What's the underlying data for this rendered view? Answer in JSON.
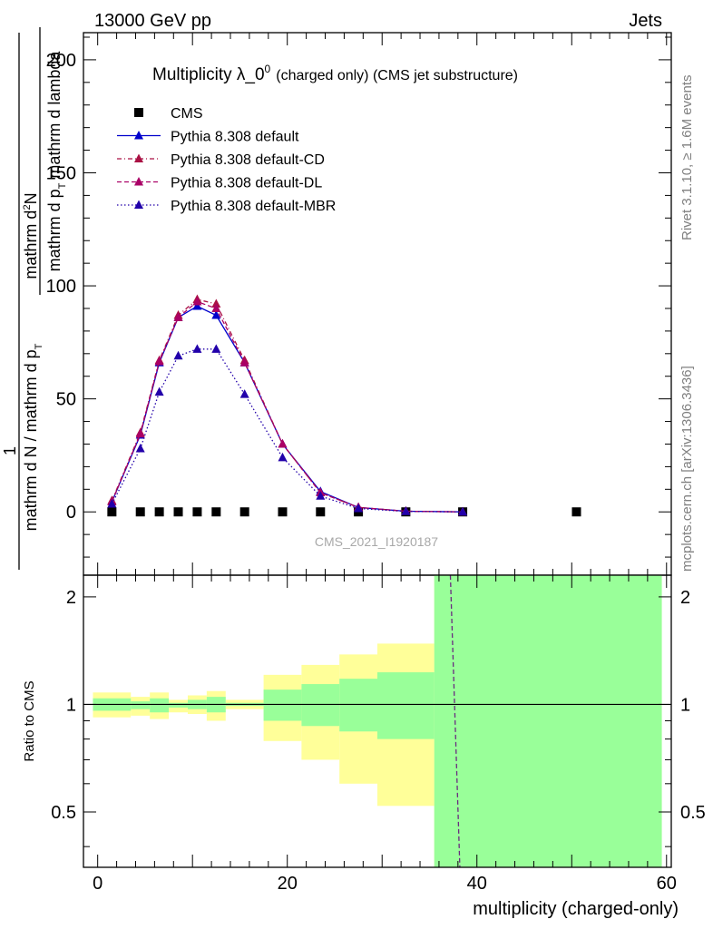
{
  "header": {
    "left": "13000 GeV pp",
    "right": "Jets"
  },
  "side": {
    "rivet": "Rivet 3.1.10, ≥ 1.6M events",
    "mcplots": "mcplots.cern.ch [arXiv:1306.3436]"
  },
  "chart_data": [
    {
      "type": "line",
      "title": "Multiplicity λ_0",
      "title_sup": "0",
      "subtitle": "(charged only) (CMS jet substructure)",
      "ylabel_num": "mathrm d",
      "ylabel_num_sup": "2",
      "ylabel_num_tail": "N",
      "ylabel_den": "mathrm d p",
      "ylabel_den_sub": "T",
      "ylabel_den_tail": " mathrm d lambda",
      "ylabel_pre_num": "1",
      "ylabel_pre_den": "mathrm d N / mathrm d p",
      "ylabel_pre_den_sub": "T",
      "xlim": [
        -1.5,
        60.5
      ],
      "ylim": [
        -28,
        212
      ],
      "yticks": [
        0,
        50,
        100,
        150,
        200
      ],
      "watermark": "CMS_2021_I1920187",
      "legend_position": "top-left",
      "series": [
        {
          "name": "CMS",
          "style": "markers-square",
          "color": "#000000",
          "x": [
            1.5,
            4.5,
            6.5,
            8.5,
            10.5,
            12.5,
            15.5,
            19.5,
            23.5,
            27.5,
            32.5,
            38.5,
            50.5
          ],
          "y": [
            0,
            0,
            0,
            0,
            0,
            0,
            0,
            0,
            0,
            0,
            0,
            0,
            0
          ]
        },
        {
          "name": "Pythia 8.308 default",
          "style": "solid",
          "color": "#0000cc",
          "x": [
            1.5,
            4.5,
            6.5,
            8.5,
            10.5,
            12.5,
            15.5,
            19.5,
            23.5,
            27.5,
            32.5,
            38.5
          ],
          "y": [
            4.5,
            34,
            66,
            86,
            91,
            87,
            66,
            30,
            9,
            2,
            0.3,
            0
          ]
        },
        {
          "name": "Pythia 8.308 default-CD",
          "style": "dashdot",
          "color": "#aa1144",
          "x": [
            1.5,
            4.5,
            6.5,
            8.5,
            10.5,
            12.5,
            15.5,
            19.5,
            23.5,
            27.5,
            32.5,
            38.5
          ],
          "y": [
            5,
            35,
            67,
            87,
            94,
            92,
            67,
            30,
            8.5,
            2,
            0.3,
            0
          ]
        },
        {
          "name": "Pythia 8.308 default-DL",
          "style": "dashed",
          "color": "#aa0066",
          "x": [
            1.5,
            4.5,
            6.5,
            8.5,
            10.5,
            12.5,
            15.5,
            19.5,
            23.5,
            27.5,
            32.5,
            38.5
          ],
          "y": [
            4.5,
            34.5,
            66.5,
            86,
            93,
            90,
            66,
            30,
            8.5,
            2,
            0.3,
            0
          ]
        },
        {
          "name": "Pythia 8.308 default-MBR",
          "style": "dotted",
          "color": "#2200aa",
          "x": [
            1.5,
            4.5,
            6.5,
            8.5,
            10.5,
            12.5,
            15.5,
            19.5,
            23.5,
            27.5,
            32.5,
            38.5
          ],
          "y": [
            3.5,
            28,
            53,
            69,
            72,
            72,
            52,
            24,
            7,
            1.5,
            0.2,
            0
          ]
        }
      ]
    },
    {
      "type": "area",
      "ylabel": "Ratio to CMS",
      "xlabel": "multiplicity (charged-only)",
      "xlim": [
        -1.5,
        60.5
      ],
      "ylim": [
        0.35,
        2.3
      ],
      "yticks": [
        0.5,
        1,
        2
      ],
      "ytick_labels": [
        "0.5",
        "1",
        "2"
      ],
      "xticks": [
        0,
        20,
        40,
        60
      ],
      "bands": {
        "x_edges": [
          -0.5,
          3.5,
          5.5,
          7.5,
          9.5,
          11.5,
          13.5,
          17.5,
          21.5,
          25.5,
          29.5,
          35.5,
          59.5
        ],
        "yellow": [
          [
            0.92,
            1.08
          ],
          [
            0.93,
            1.05
          ],
          [
            0.91,
            1.08
          ],
          [
            0.95,
            1.03
          ],
          [
            0.94,
            1.06
          ],
          [
            0.9,
            1.09
          ],
          [
            0.97,
            1.03
          ],
          [
            0.79,
            1.21
          ],
          [
            0.7,
            1.29
          ],
          [
            0.6,
            1.38
          ],
          [
            0.52,
            1.48
          ],
          [
            0.35,
            2.3
          ]
        ],
        "green": [
          [
            0.96,
            1.04
          ],
          [
            0.97,
            1.02
          ],
          [
            0.95,
            1.04
          ],
          [
            0.98,
            1.01
          ],
          [
            0.97,
            1.03
          ],
          [
            0.95,
            1.05
          ],
          [
            0.99,
            1.01
          ],
          [
            0.9,
            1.1
          ],
          [
            0.87,
            1.14
          ],
          [
            0.84,
            1.18
          ],
          [
            0.8,
            1.23
          ],
          [
            0.35,
            2.3
          ]
        ]
      },
      "ratio_line": {
        "color": "#6a2a80",
        "x": [
          37.2,
          38.2
        ],
        "y": [
          2.3,
          0.35
        ]
      }
    }
  ]
}
